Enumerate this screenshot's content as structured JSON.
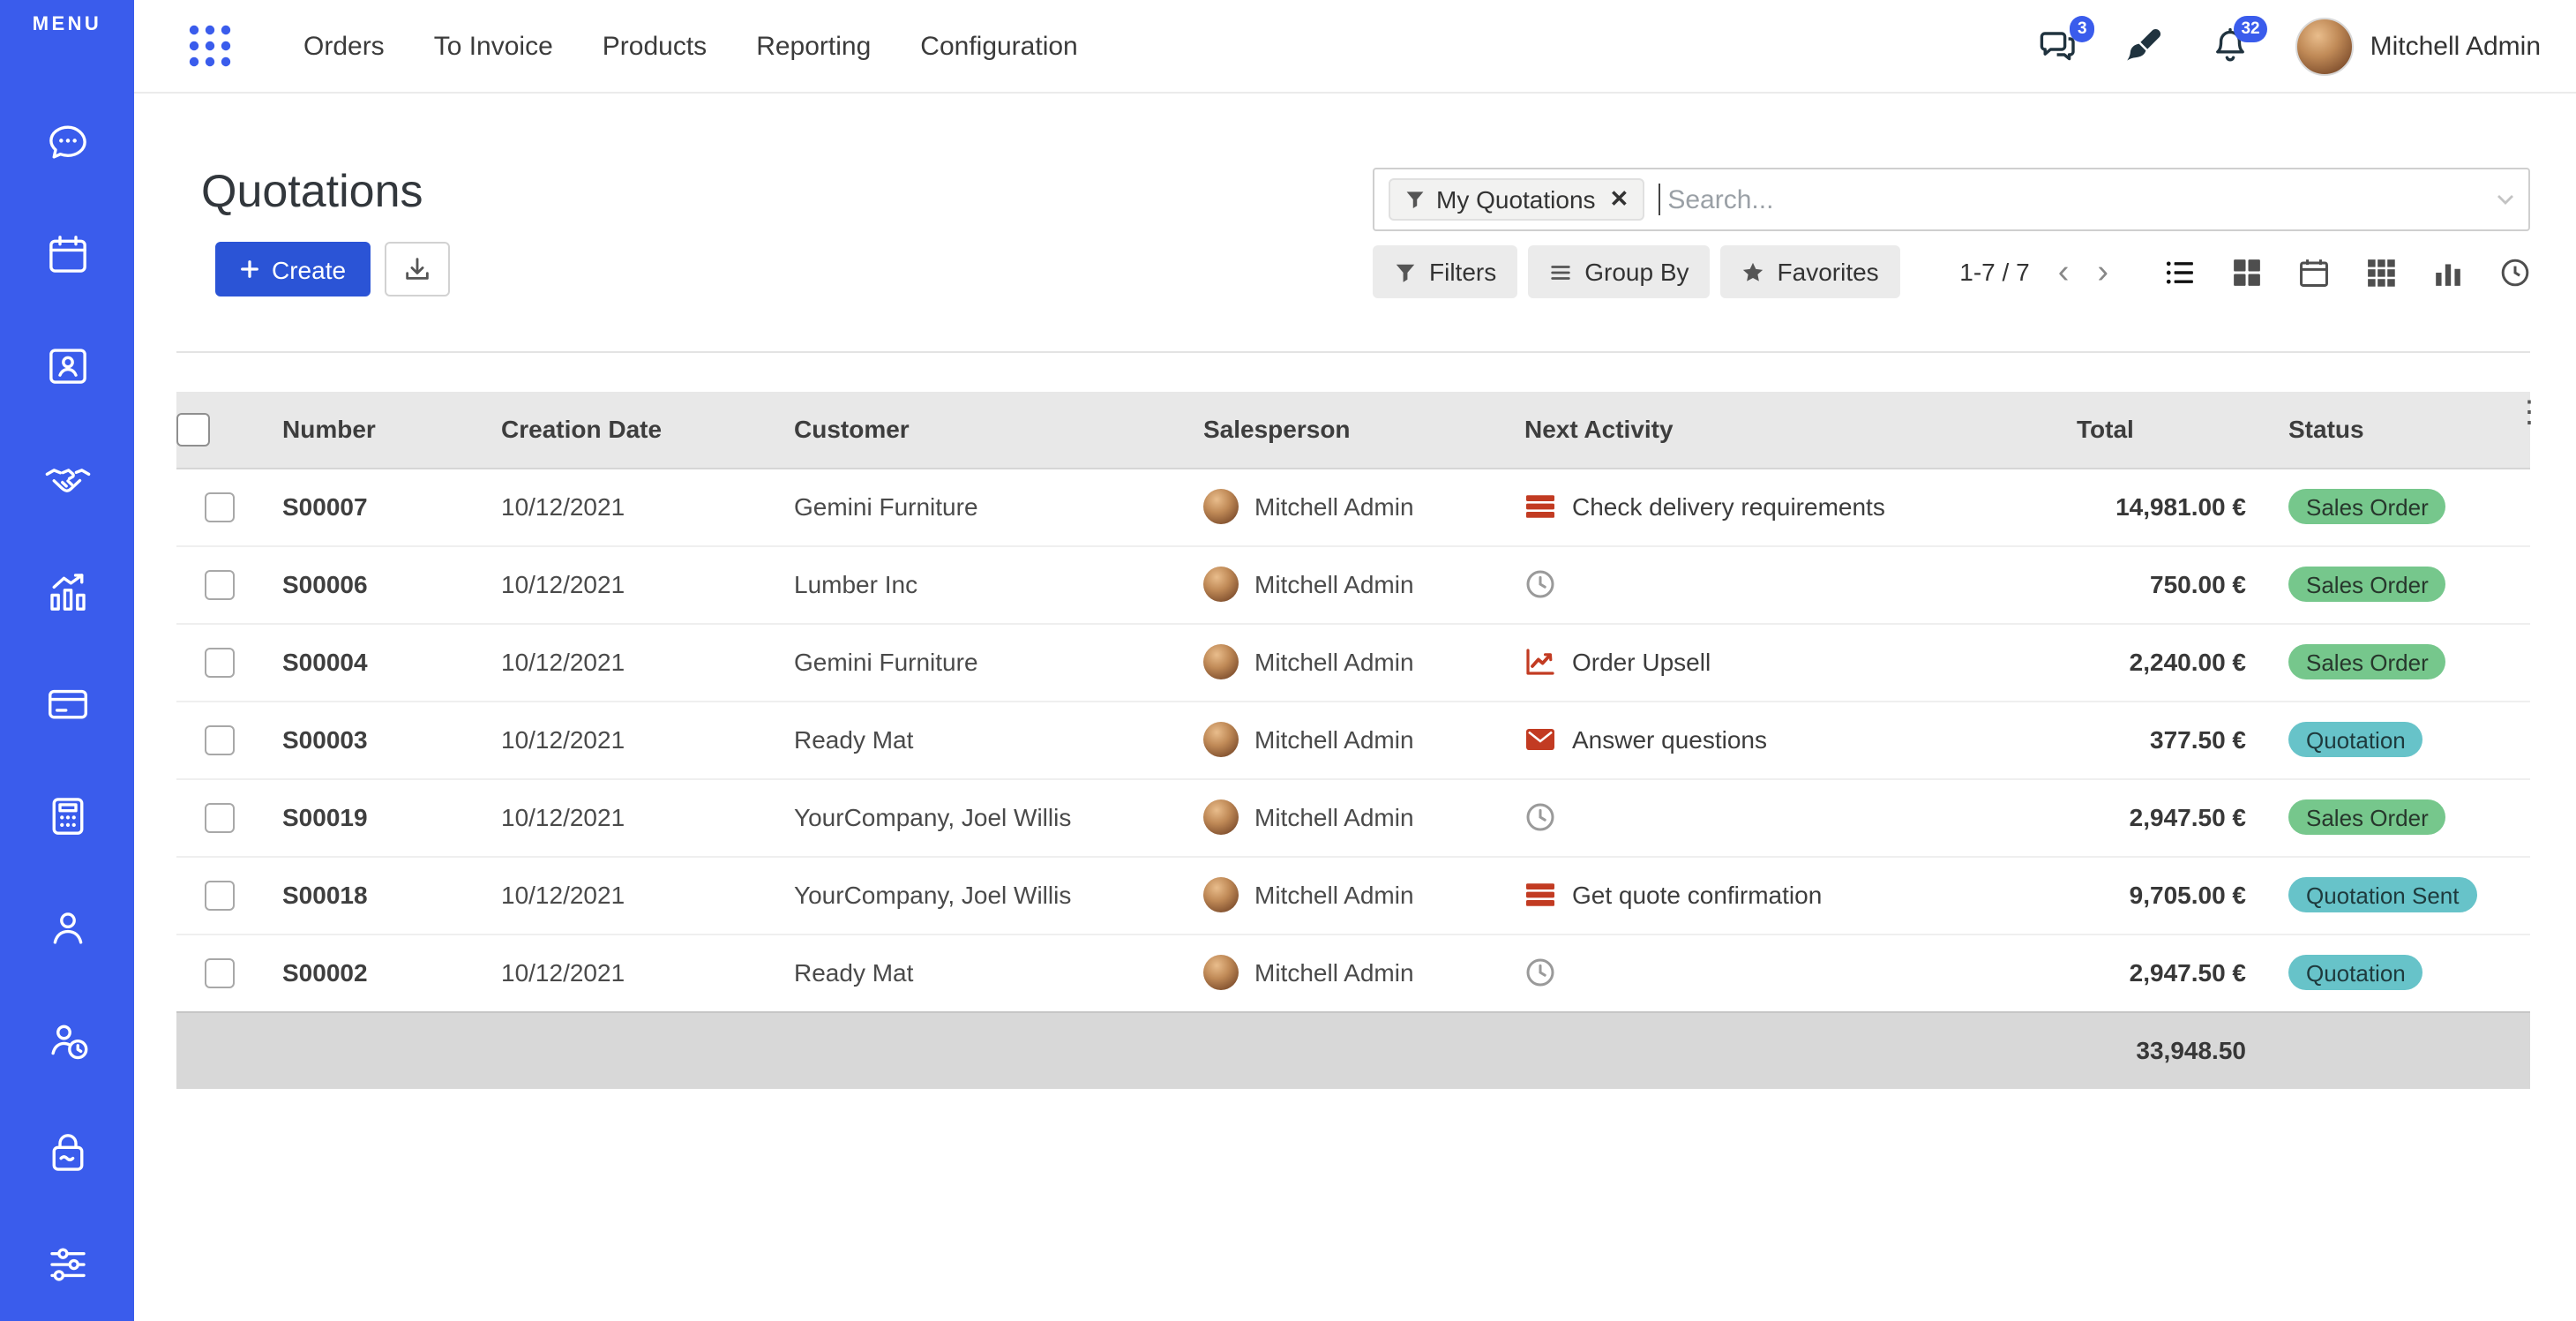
{
  "colors": {
    "brand": "#3a5cec",
    "sidebar-bg": "#3a5cec",
    "primary-btn": "#2b54d6",
    "topbar-icon": "#20333f",
    "danger": "#c23b22",
    "success-bg": "#76c78c",
    "success-text": "#27372c",
    "info-bg": "#67c3c9",
    "info-text": "#1e3a3d"
  },
  "sidebar": {
    "menu_label": "MENU",
    "icons": [
      "discuss-chat-icon",
      "calendar-icon",
      "contacts-icon",
      "handshake-icon",
      "sales-chart-icon",
      "credit-card-icon",
      "calculator-icon",
      "employee-icon",
      "attendance-clock-icon",
      "purchase-bag-icon",
      "settings-sliders-icon"
    ]
  },
  "topbar": {
    "nav": [
      "Orders",
      "To Invoice",
      "Products",
      "Reporting",
      "Configuration"
    ],
    "messages_badge": "3",
    "notifications_badge": "32",
    "user_name": "Mitchell Admin"
  },
  "page": {
    "title": "Quotations",
    "create_label": "Create",
    "search": {
      "facet": "My Quotations",
      "placeholder": "Search..."
    },
    "controls": {
      "filters": "Filters",
      "group_by": "Group By",
      "favorites": "Favorites"
    },
    "pager": "1-7 / 7"
  },
  "table": {
    "headers": [
      "Number",
      "Creation Date",
      "Customer",
      "Salesperson",
      "Next Activity",
      "Total",
      "Status"
    ],
    "rows": [
      {
        "number": "S00007",
        "date": "10/12/2021",
        "customer": "Gemini Furniture",
        "salesperson": "Mitchell Admin",
        "activity_icon": "tasks",
        "activity": "Check delivery requirements",
        "total": "14,981.00 €",
        "status": "Sales Order",
        "status_type": "success"
      },
      {
        "number": "S00006",
        "date": "10/12/2021",
        "customer": "Lumber Inc",
        "salesperson": "Mitchell Admin",
        "activity_icon": "clock",
        "activity": "",
        "total": "750.00 €",
        "status": "Sales Order",
        "status_type": "success"
      },
      {
        "number": "S00004",
        "date": "10/12/2021",
        "customer": "Gemini Furniture",
        "salesperson": "Mitchell Admin",
        "activity_icon": "chart",
        "activity": "Order Upsell",
        "total": "2,240.00 €",
        "status": "Sales Order",
        "status_type": "success"
      },
      {
        "number": "S00003",
        "date": "10/12/2021",
        "customer": "Ready Mat",
        "salesperson": "Mitchell Admin",
        "activity_icon": "envelope",
        "activity": "Answer questions",
        "total": "377.50 €",
        "status": "Quotation",
        "status_type": "info"
      },
      {
        "number": "S00019",
        "date": "10/12/2021",
        "customer": "YourCompany, Joel Willis",
        "salesperson": "Mitchell Admin",
        "activity_icon": "clock",
        "activity": "",
        "total": "2,947.50 €",
        "status": "Sales Order",
        "status_type": "success"
      },
      {
        "number": "S00018",
        "date": "10/12/2021",
        "customer": "YourCompany, Joel Willis",
        "salesperson": "Mitchell Admin",
        "activity_icon": "tasks",
        "activity": "Get quote confirmation",
        "total": "9,705.00 €",
        "status": "Quotation Sent",
        "status_type": "info"
      },
      {
        "number": "S00002",
        "date": "10/12/2021",
        "customer": "Ready Mat",
        "salesperson": "Mitchell Admin",
        "activity_icon": "clock",
        "activity": "",
        "total": "2,947.50 €",
        "status": "Quotation",
        "status_type": "info"
      }
    ],
    "footer_total": "33,948.50"
  }
}
